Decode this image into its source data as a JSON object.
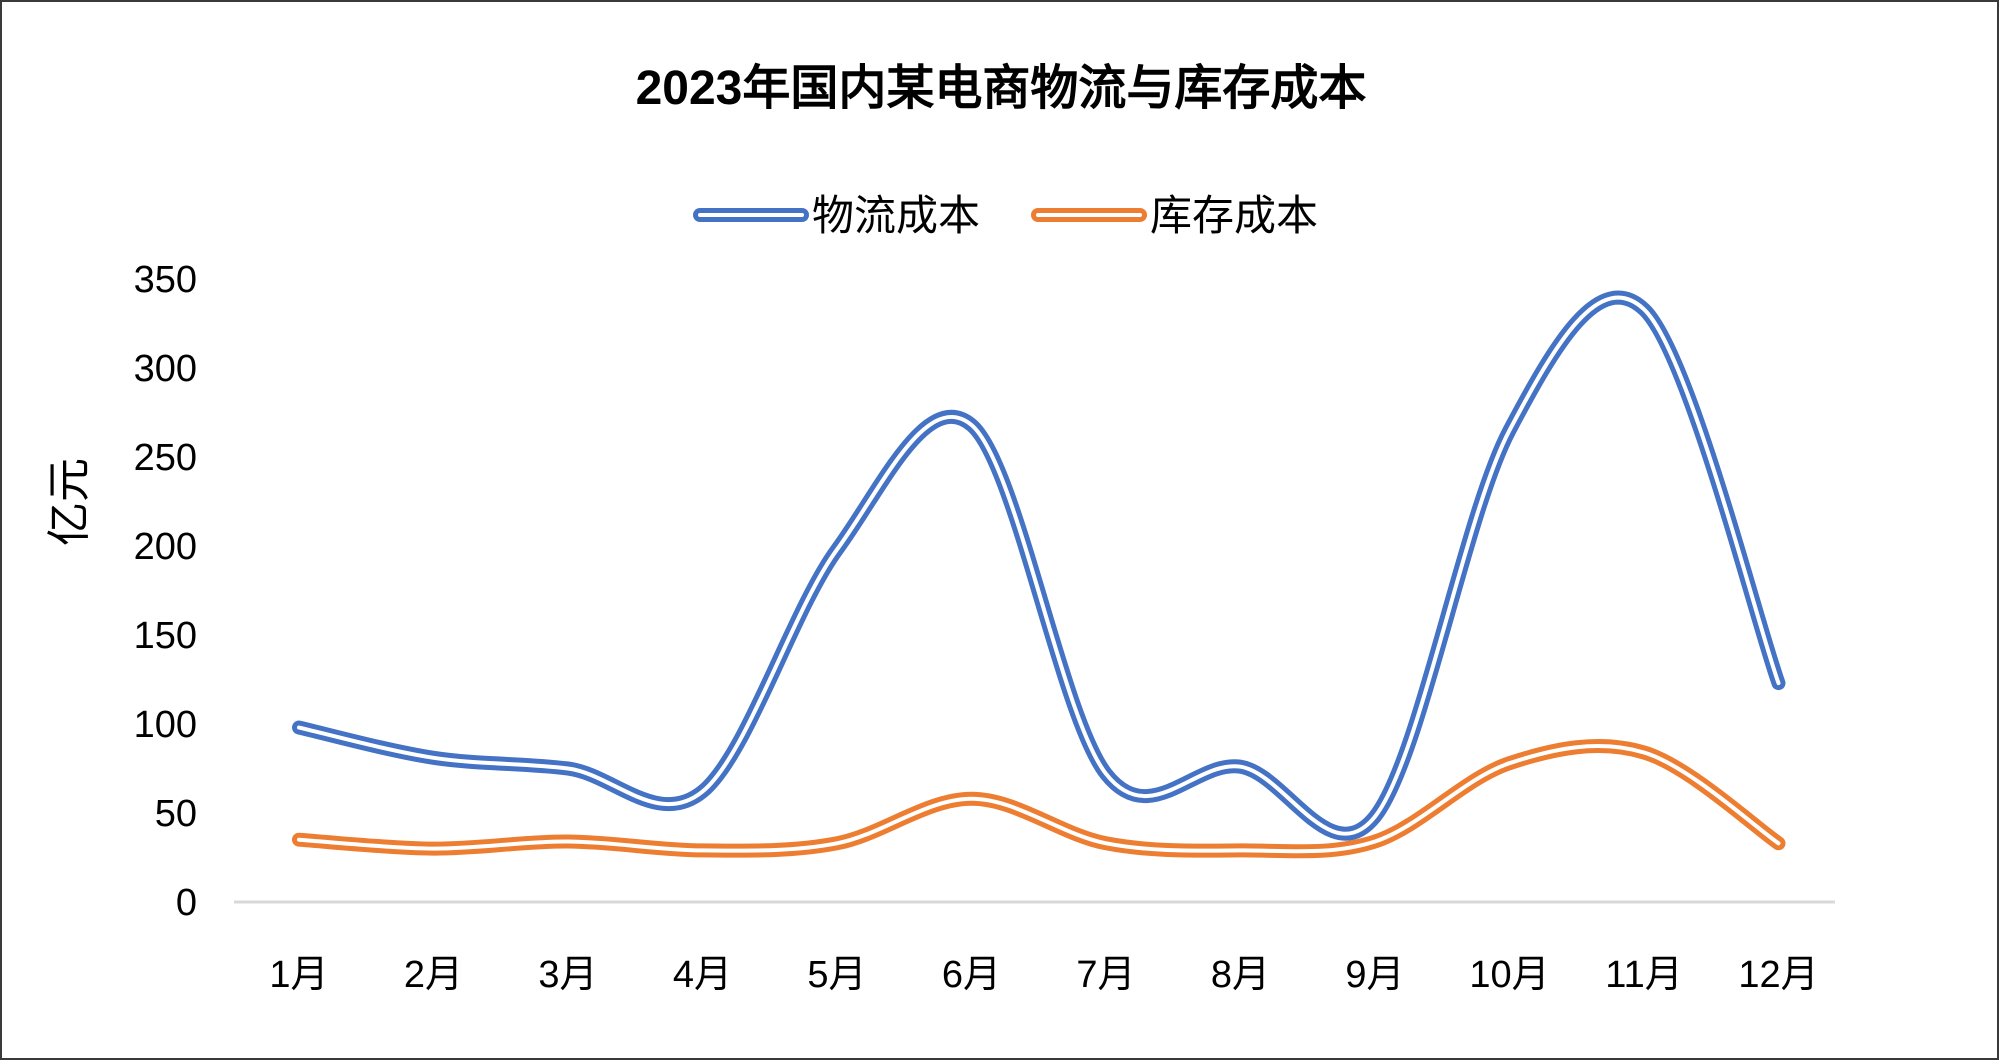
{
  "chart_data": {
    "type": "line",
    "title": "2023年国内某电商物流与库存成本",
    "xlabel": "",
    "ylabel": "亿元",
    "categories": [
      "1月",
      "2月",
      "3月",
      "4月",
      "5月",
      "6月",
      "7月",
      "8月",
      "9月",
      "10月",
      "11月",
      "12月"
    ],
    "ylim": [
      0,
      350
    ],
    "yticks": [
      0,
      50,
      100,
      150,
      200,
      250,
      300,
      350
    ],
    "legend_position": "top",
    "grid": false,
    "smooth": true,
    "series": [
      {
        "name": "物流成本",
        "color": "#4472C4",
        "values": [
          98,
          81,
          75,
          62,
          198,
          268,
          72,
          76,
          48,
          265,
          333,
          123
        ]
      },
      {
        "name": "库存成本",
        "color": "#ED7D31",
        "values": [
          35,
          30,
          34,
          29,
          33,
          58,
          33,
          29,
          34,
          78,
          84,
          33
        ]
      }
    ]
  }
}
